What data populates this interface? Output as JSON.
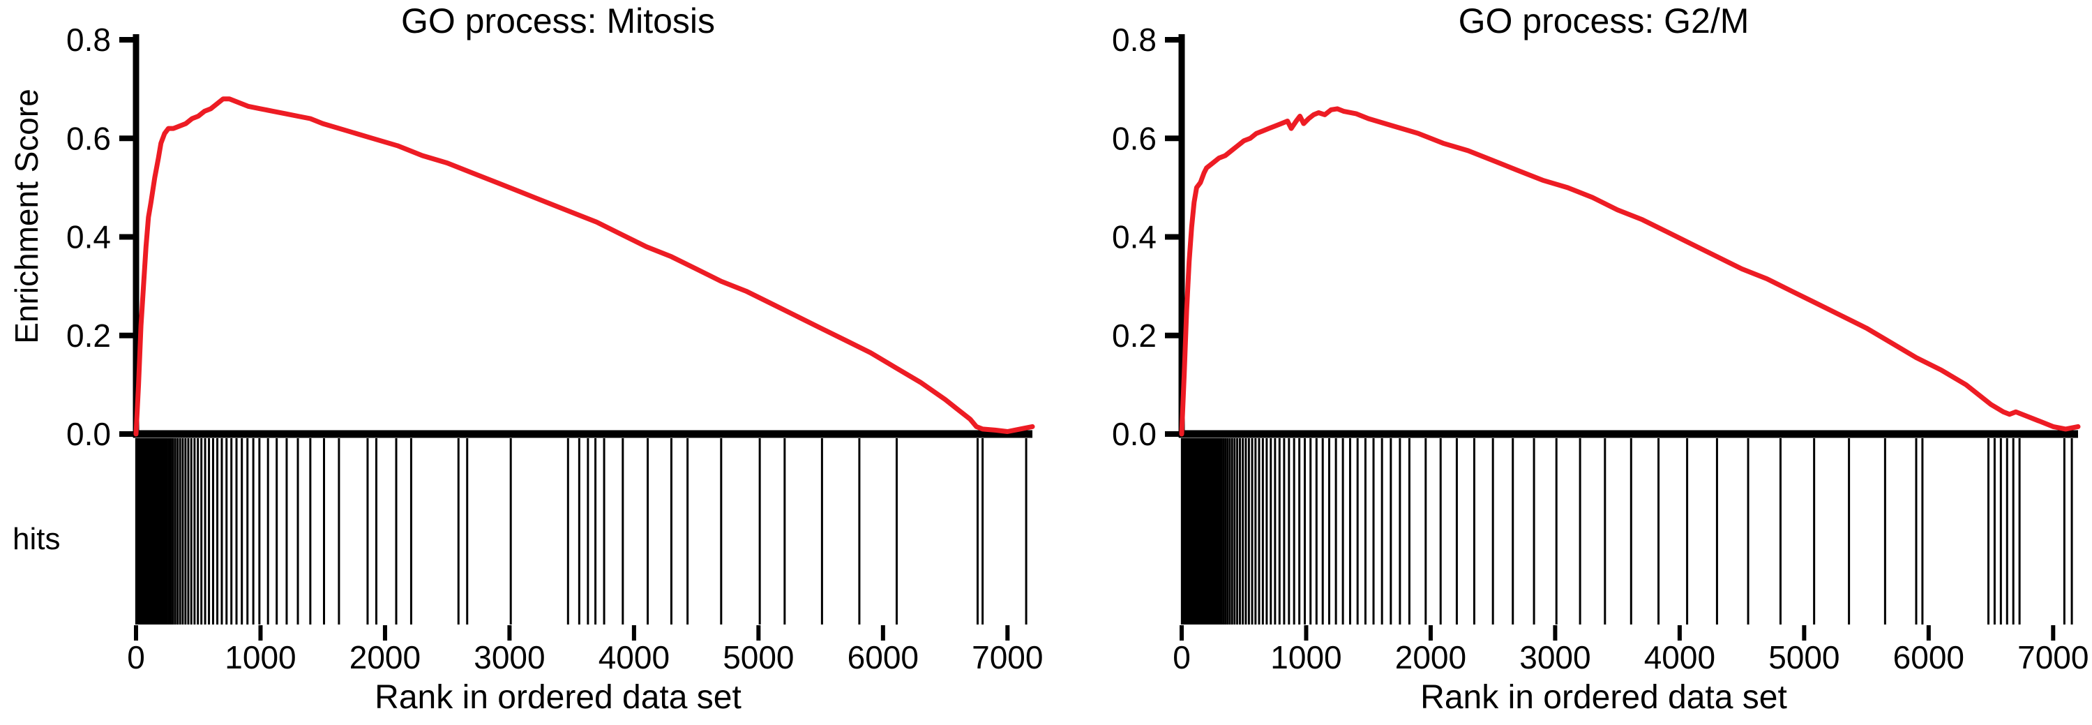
{
  "figure": {
    "background": "#ffffff",
    "axis_color": "#000000",
    "curve_color": "#ED1C24"
  },
  "chart_data": [
    {
      "type": "line",
      "title": "GO process: Mitosis",
      "xlabel": "Rank in ordered data set",
      "ylabel": "Enrichment Score",
      "hits_label": "hits",
      "xlim": [
        0,
        7200
      ],
      "ylim": [
        0,
        0.8
      ],
      "xticks": [
        0,
        1000,
        2000,
        3000,
        4000,
        5000,
        6000,
        7000
      ],
      "xtick_labels": [
        "0",
        "1000",
        "2000",
        "3000",
        "4000",
        "5000",
        "6000",
        "7000"
      ],
      "yticks": [
        0,
        0.2,
        0.4,
        0.6,
        0.8
      ],
      "ytick_labels": [
        "0.0",
        "0.2",
        "0.4",
        "0.6",
        "0.8"
      ],
      "grid": false,
      "legend": "none",
      "series": [
        {
          "name": "Enrichment score",
          "color": "#ED1C24",
          "points": [
            [
              0,
              0.0
            ],
            [
              20,
              0.1
            ],
            [
              40,
              0.22
            ],
            [
              60,
              0.3
            ],
            [
              80,
              0.38
            ],
            [
              100,
              0.44
            ],
            [
              120,
              0.47
            ],
            [
              150,
              0.52
            ],
            [
              180,
              0.56
            ],
            [
              200,
              0.59
            ],
            [
              230,
              0.61
            ],
            [
              260,
              0.62
            ],
            [
              300,
              0.62
            ],
            [
              350,
              0.625
            ],
            [
              400,
              0.63
            ],
            [
              450,
              0.64
            ],
            [
              500,
              0.645
            ],
            [
              550,
              0.655
            ],
            [
              600,
              0.66
            ],
            [
              650,
              0.67
            ],
            [
              700,
              0.68
            ],
            [
              750,
              0.68
            ],
            [
              800,
              0.675
            ],
            [
              900,
              0.665
            ],
            [
              1000,
              0.66
            ],
            [
              1100,
              0.655
            ],
            [
              1200,
              0.65
            ],
            [
              1300,
              0.645
            ],
            [
              1400,
              0.64
            ],
            [
              1500,
              0.63
            ],
            [
              1700,
              0.615
            ],
            [
              1900,
              0.6
            ],
            [
              2100,
              0.585
            ],
            [
              2300,
              0.565
            ],
            [
              2500,
              0.55
            ],
            [
              2700,
              0.53
            ],
            [
              2900,
              0.51
            ],
            [
              3100,
              0.49
            ],
            [
              3300,
              0.47
            ],
            [
              3500,
              0.45
            ],
            [
              3700,
              0.43
            ],
            [
              3900,
              0.405
            ],
            [
              4100,
              0.38
            ],
            [
              4300,
              0.36
            ],
            [
              4500,
              0.335
            ],
            [
              4700,
              0.31
            ],
            [
              4900,
              0.29
            ],
            [
              5100,
              0.265
            ],
            [
              5300,
              0.24
            ],
            [
              5500,
              0.215
            ],
            [
              5700,
              0.19
            ],
            [
              5900,
              0.165
            ],
            [
              6100,
              0.135
            ],
            [
              6300,
              0.105
            ],
            [
              6500,
              0.07
            ],
            [
              6600,
              0.05
            ],
            [
              6700,
              0.03
            ],
            [
              6750,
              0.015
            ],
            [
              6800,
              0.01
            ],
            [
              6900,
              0.008
            ],
            [
              7000,
              0.005
            ],
            [
              7100,
              0.01
            ],
            [
              7200,
              0.015
            ]
          ]
        }
      ],
      "hits": [
        2,
        7,
        12,
        17,
        22,
        27,
        32,
        37,
        42,
        47,
        52,
        57,
        62,
        67,
        72,
        77,
        82,
        88,
        94,
        100,
        106,
        112,
        119,
        126,
        133,
        141,
        149,
        158,
        167,
        177,
        187,
        198,
        210,
        222,
        235,
        249,
        264,
        280,
        297,
        315,
        334,
        354,
        375,
        397,
        420,
        444,
        470,
        497,
        525,
        555,
        586,
        619,
        653,
        689,
        727,
        766,
        807,
        850,
        895,
        942,
        991,
        1060,
        1130,
        1210,
        1300,
        1400,
        1510,
        1630,
        1860,
        1930,
        2090,
        2210,
        2590,
        2660,
        3010,
        3470,
        3560,
        3630,
        3690,
        3760,
        3910,
        4110,
        4300,
        4430,
        4700,
        5010,
        5210,
        5510,
        5810,
        6110,
        6760,
        6800,
        7150
      ]
    },
    {
      "type": "line",
      "title": "GO process: G2/M",
      "xlabel": "Rank in ordered data set",
      "xlim": [
        0,
        7200
      ],
      "ylim": [
        0,
        0.8
      ],
      "xticks": [
        0,
        1000,
        2000,
        3000,
        4000,
        5000,
        6000,
        7000
      ],
      "xtick_labels": [
        "0",
        "1000",
        "2000",
        "3000",
        "4000",
        "5000",
        "6000",
        "7000"
      ],
      "yticks": [
        0,
        0.2,
        0.4,
        0.6,
        0.8
      ],
      "ytick_labels": [
        "0.0",
        "0.2",
        "0.4",
        "0.6",
        "0.8"
      ],
      "grid": false,
      "legend": "none",
      "series": [
        {
          "name": "Enrichment score",
          "color": "#ED1C24",
          "points": [
            [
              0,
              0.0
            ],
            [
              20,
              0.12
            ],
            [
              40,
              0.25
            ],
            [
              60,
              0.35
            ],
            [
              80,
              0.42
            ],
            [
              100,
              0.47
            ],
            [
              120,
              0.5
            ],
            [
              150,
              0.51
            ],
            [
              180,
              0.53
            ],
            [
              200,
              0.54
            ],
            [
              250,
              0.55
            ],
            [
              300,
              0.56
            ],
            [
              350,
              0.565
            ],
            [
              400,
              0.575
            ],
            [
              450,
              0.585
            ],
            [
              500,
              0.595
            ],
            [
              550,
              0.6
            ],
            [
              600,
              0.61
            ],
            [
              650,
              0.615
            ],
            [
              700,
              0.62
            ],
            [
              750,
              0.625
            ],
            [
              800,
              0.63
            ],
            [
              850,
              0.635
            ],
            [
              880,
              0.62
            ],
            [
              920,
              0.635
            ],
            [
              950,
              0.645
            ],
            [
              980,
              0.63
            ],
            [
              1020,
              0.64
            ],
            [
              1060,
              0.648
            ],
            [
              1100,
              0.652
            ],
            [
              1150,
              0.648
            ],
            [
              1200,
              0.658
            ],
            [
              1250,
              0.66
            ],
            [
              1300,
              0.655
            ],
            [
              1400,
              0.65
            ],
            [
              1500,
              0.64
            ],
            [
              1700,
              0.625
            ],
            [
              1900,
              0.61
            ],
            [
              2100,
              0.59
            ],
            [
              2300,
              0.575
            ],
            [
              2500,
              0.555
            ],
            [
              2700,
              0.535
            ],
            [
              2900,
              0.515
            ],
            [
              3100,
              0.5
            ],
            [
              3300,
              0.48
            ],
            [
              3500,
              0.455
            ],
            [
              3700,
              0.435
            ],
            [
              3900,
              0.41
            ],
            [
              4100,
              0.385
            ],
            [
              4300,
              0.36
            ],
            [
              4500,
              0.335
            ],
            [
              4700,
              0.315
            ],
            [
              4900,
              0.29
            ],
            [
              5100,
              0.265
            ],
            [
              5300,
              0.24
            ],
            [
              5500,
              0.215
            ],
            [
              5700,
              0.185
            ],
            [
              5900,
              0.155
            ],
            [
              6100,
              0.13
            ],
            [
              6300,
              0.1
            ],
            [
              6500,
              0.06
            ],
            [
              6600,
              0.045
            ],
            [
              6650,
              0.04
            ],
            [
              6700,
              0.045
            ],
            [
              6800,
              0.035
            ],
            [
              6900,
              0.025
            ],
            [
              7000,
              0.015
            ],
            [
              7100,
              0.01
            ],
            [
              7200,
              0.015
            ]
          ]
        }
      ],
      "hits": [
        2,
        6,
        10,
        14,
        18,
        22,
        26,
        30,
        34,
        38,
        42,
        46,
        50,
        54,
        58,
        62,
        66,
        70,
        74,
        78,
        82,
        86,
        90,
        95,
        100,
        105,
        110,
        116,
        122,
        128,
        134,
        141,
        148,
        155,
        163,
        171,
        179,
        188,
        197,
        207,
        217,
        228,
        239,
        251,
        263,
        276,
        290,
        304,
        319,
        335,
        351,
        368,
        386,
        405,
        425,
        446,
        468,
        491,
        515,
        540,
        566,
        593,
        622,
        652,
        683,
        716,
        750,
        786,
        823,
        862,
        903,
        945,
        989,
        1035,
        1083,
        1133,
        1185,
        1239,
        1295,
        1353,
        1413,
        1476,
        1541,
        1609,
        1680,
        1753,
        1829,
        1960,
        2080,
        2210,
        2350,
        2500,
        2660,
        2830,
        3010,
        3200,
        3400,
        3610,
        3830,
        4060,
        4300,
        4550,
        4810,
        5080,
        5360,
        5650,
        5900,
        5950,
        6480,
        6530,
        6580,
        6630,
        6680,
        6730,
        7090,
        7150
      ]
    }
  ]
}
